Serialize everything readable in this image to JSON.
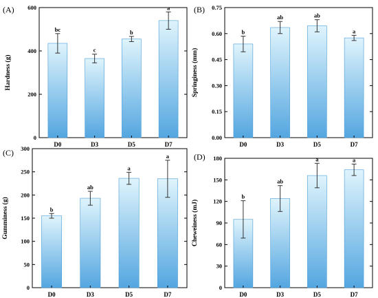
{
  "figure": {
    "colors": {
      "bar_top": "#dff4fc",
      "bar_bottom": "#54a6e0",
      "bar_edge": "#4a9bd6",
      "error_bar": "#333333",
      "axis": "#000000"
    }
  },
  "chart_data": [
    {
      "type": "bar",
      "panel_label": "(A)",
      "title": "",
      "xlabel": "",
      "ylabel": "Hardness (g)",
      "categories": [
        "D0",
        "D3",
        "D5",
        "D7"
      ],
      "values": [
        435,
        365,
        455,
        540
      ],
      "errors": [
        45,
        20,
        12,
        40
      ],
      "significance": [
        "bc",
        "c",
        "b",
        "a"
      ],
      "ylim": [
        0,
        600
      ],
      "yticks": [
        0,
        200,
        400,
        600
      ],
      "ytick_labels": [
        "0",
        "200",
        "400",
        "600"
      ],
      "grid": false
    },
    {
      "type": "bar",
      "panel_label": "(B)",
      "title": "",
      "xlabel": "",
      "ylabel": "Springiness (mm)",
      "categories": [
        "D0",
        "D3",
        "D5",
        "D7"
      ],
      "values": [
        0.54,
        0.635,
        0.645,
        0.575
      ],
      "errors": [
        0.045,
        0.035,
        0.035,
        0.015
      ],
      "significance": [
        "b",
        "ab",
        "ab",
        "a"
      ],
      "ylim": [
        0,
        0.75
      ],
      "yticks": [
        0,
        0.15,
        0.3,
        0.45,
        0.6,
        0.75
      ],
      "ytick_labels": [
        "0.00",
        "0.15",
        "0.30",
        "0.45",
        "0.60",
        "0.75"
      ],
      "grid": false
    },
    {
      "type": "bar",
      "panel_label": "(C)",
      "title": "",
      "xlabel": "",
      "ylabel": "Gumminess (g)",
      "categories": [
        "D0",
        "D3",
        "D5",
        "D7"
      ],
      "values": [
        155,
        193,
        236,
        235
      ],
      "errors": [
        5,
        15,
        13,
        40
      ],
      "significance": [
        "b",
        "ab",
        "a",
        "a"
      ],
      "ylim": [
        0,
        300
      ],
      "yticks": [
        0,
        50,
        100,
        150,
        200,
        250,
        300
      ],
      "ytick_labels": [
        "0",
        "50",
        "100",
        "150",
        "200",
        "250",
        "300"
      ],
      "grid": false
    },
    {
      "type": "bar",
      "panel_label": "(D)",
      "title": "",
      "xlabel": "",
      "ylabel": "Cheweiness (mJ)",
      "categories": [
        "D0",
        "D3",
        "D5",
        "D7"
      ],
      "values": [
        95,
        124,
        156,
        164
      ],
      "errors": [
        26,
        18,
        17,
        8
      ],
      "significance": [
        "b",
        "ab",
        "a",
        "a"
      ],
      "ylim": [
        0,
        180
      ],
      "yticks": [
        0,
        30,
        60,
        90,
        120,
        150,
        180
      ],
      "ytick_labels": [
        "0",
        "30",
        "60",
        "90",
        "120",
        "150",
        "180"
      ],
      "grid": false
    }
  ]
}
